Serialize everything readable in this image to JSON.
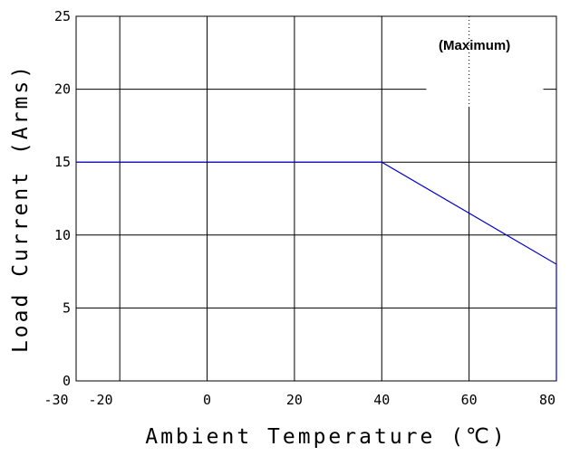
{
  "chart_data": {
    "type": "line",
    "x": [
      -30,
      40,
      80,
      80
    ],
    "series": [
      {
        "values": [
          15,
          15,
          8,
          0
        ],
        "color": "#0000cc"
      }
    ],
    "xlabel": "Ambient Temperature (℃)",
    "ylabel": "Load Current (Arms)",
    "xlim": [
      -30,
      80
    ],
    "ylim": [
      0,
      25
    ],
    "x_ticks": [
      -30,
      -20,
      0,
      20,
      40,
      60,
      80
    ],
    "x_tick_labels": [
      "-30",
      "-20",
      "0",
      "20",
      "40",
      "60",
      "80"
    ],
    "y_ticks": [
      0,
      5,
      10,
      15,
      20,
      25
    ],
    "y_tick_labels": [
      "0",
      "5",
      "10",
      "15",
      "20",
      "25"
    ],
    "x_grid": [
      -20,
      0,
      20,
      40,
      60
    ],
    "y_grid": [
      5,
      10,
      15,
      20
    ],
    "grid": true,
    "legend": "none",
    "annotation": "(Maximum)"
  }
}
